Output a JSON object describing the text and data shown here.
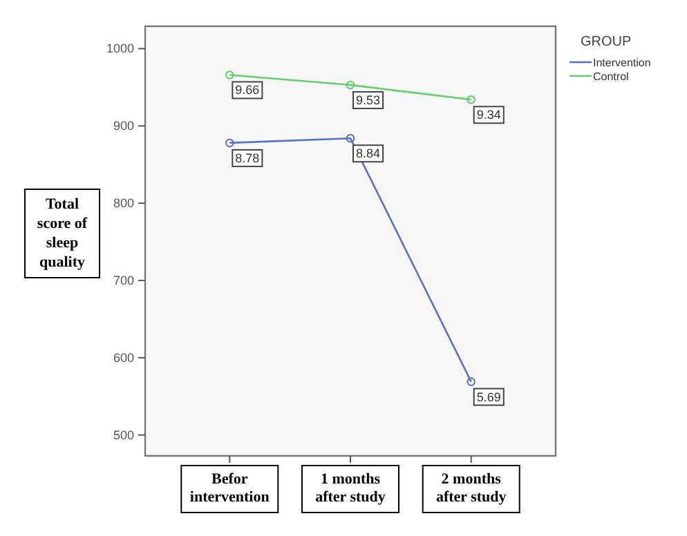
{
  "chart_data": {
    "type": "line",
    "ylabel": "Total score of sleep quality",
    "legend_title": "GROUP",
    "categories": [
      "Befor intervention",
      "1 months after study",
      "2 months after study"
    ],
    "series": [
      {
        "name": "Intervention",
        "color": "#5a6fc7",
        "values": [
          878,
          884,
          569
        ]
      },
      {
        "name": "Control",
        "color": "#5fd06a",
        "values": [
          966,
          953,
          934
        ]
      }
    ],
    "annotations": [
      {
        "text": "9.66",
        "x": "Befor intervention",
        "y": 966
      },
      {
        "text": "9.53",
        "x": "1 months after study",
        "y": 953
      },
      {
        "text": "9.34",
        "x": "2 months after study",
        "y": 934
      },
      {
        "text": "8.78",
        "x": "Befor intervention",
        "y": 878
      },
      {
        "text": "8.84",
        "x": "1 months after study",
        "y": 884
      },
      {
        "text": "5.69",
        "x": "2 months after study",
        "y": 569
      }
    ],
    "ylim": [
      473,
      1029
    ],
    "yticks": [
      500,
      600,
      700,
      800,
      900,
      1000
    ],
    "marker": "circle",
    "legend": "top right"
  }
}
